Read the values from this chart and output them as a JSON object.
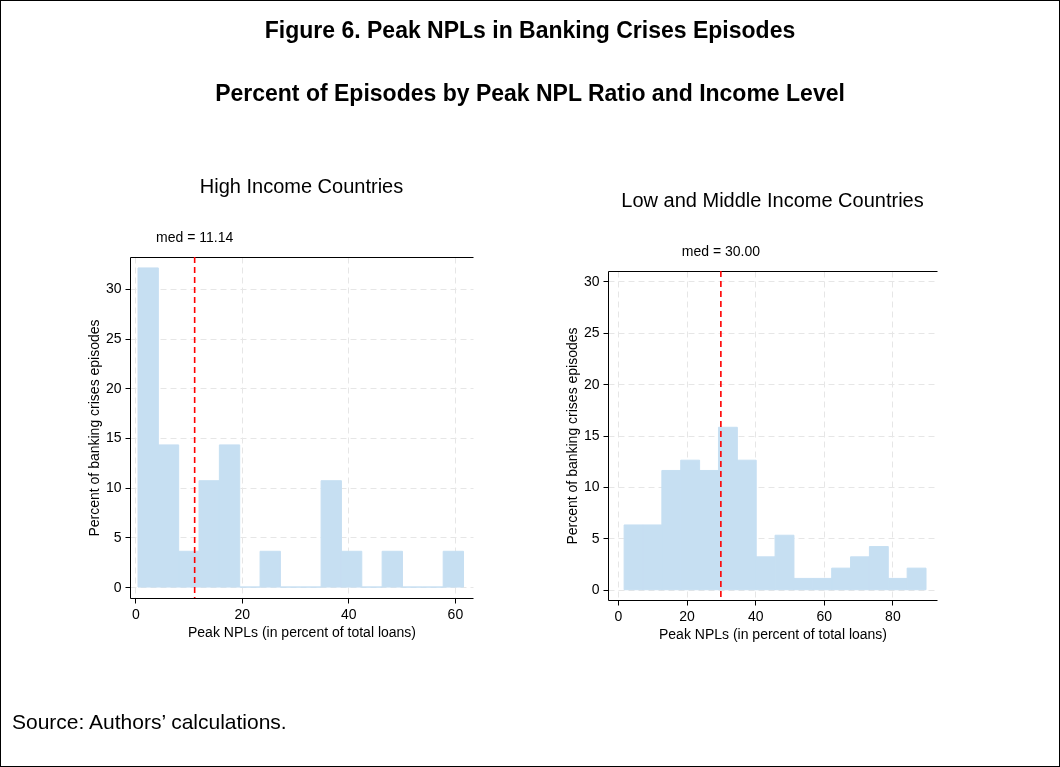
{
  "chart_data": [
    {
      "type": "other",
      "title": "Figure 6. Peak NPLs in Banking Crises Episodes",
      "subtitle": "Percent of Episodes by Peak NPL Ratio and Income Level",
      "annotations": [
        "Source: Authors’ calculations."
      ]
    },
    {
      "type": "histogram",
      "title": "High Income Countries",
      "xlabel": "Peak NPLs (in percent of total loans)",
      "ylabel": "Percent of banking crises episodes",
      "bins": [
        0.5,
        4.32,
        8.14,
        11.96,
        15.78,
        19.6,
        23.42,
        27.24,
        31.06,
        34.88,
        38.7,
        42.52,
        46.34,
        50.16,
        53.98,
        57.8,
        61.62
      ],
      "values": [
        32.1,
        14.3,
        3.6,
        10.7,
        14.3,
        0,
        3.6,
        0,
        0,
        10.7,
        3.6,
        0,
        3.6,
        0,
        0,
        3.6
      ],
      "color": "#c6dff2",
      "xlim": [
        -1,
        63.4
      ],
      "ylim": [
        -1.1,
        33.2
      ],
      "xticks": [
        0,
        20,
        40,
        60
      ],
      "yticks": [
        0,
        5,
        10,
        15,
        20,
        25,
        30
      ],
      "grid": true,
      "ref_lines": [
        {
          "axis": "x",
          "value": 11.14,
          "label": "med = 11.14",
          "color": "#ff0000",
          "line_style": "dashed"
        }
      ]
    },
    {
      "type": "histogram",
      "title": "Low and Middle Income Countries",
      "xlabel": "Peak NPLs (in percent of total loans)",
      "ylabel": "Percent of banking crises episodes",
      "bins": [
        1.8,
        7.3,
        12.8,
        18.3,
        23.8,
        29.3,
        34.8,
        40.3,
        45.8,
        51.3,
        56.8,
        62.3,
        67.8,
        73.3,
        78.8,
        84.3,
        89.8
      ],
      "values": [
        6.3,
        6.3,
        11.6,
        12.6,
        11.6,
        15.8,
        12.6,
        3.2,
        5.3,
        1.1,
        1.1,
        2.1,
        3.2,
        4.2,
        1.1,
        2.1
      ],
      "color": "#c6dff2",
      "xlim": [
        -2.9,
        93
      ],
      "ylim": [
        -1,
        31
      ],
      "xticks": [
        0,
        20,
        40,
        60,
        80
      ],
      "yticks": [
        0,
        5,
        10,
        15,
        20,
        25,
        30
      ],
      "grid": true,
      "ref_lines": [
        {
          "axis": "x",
          "value": 30,
          "label": "med = 30.00",
          "color": "#ff0000",
          "line_style": "dashed"
        }
      ]
    }
  ]
}
